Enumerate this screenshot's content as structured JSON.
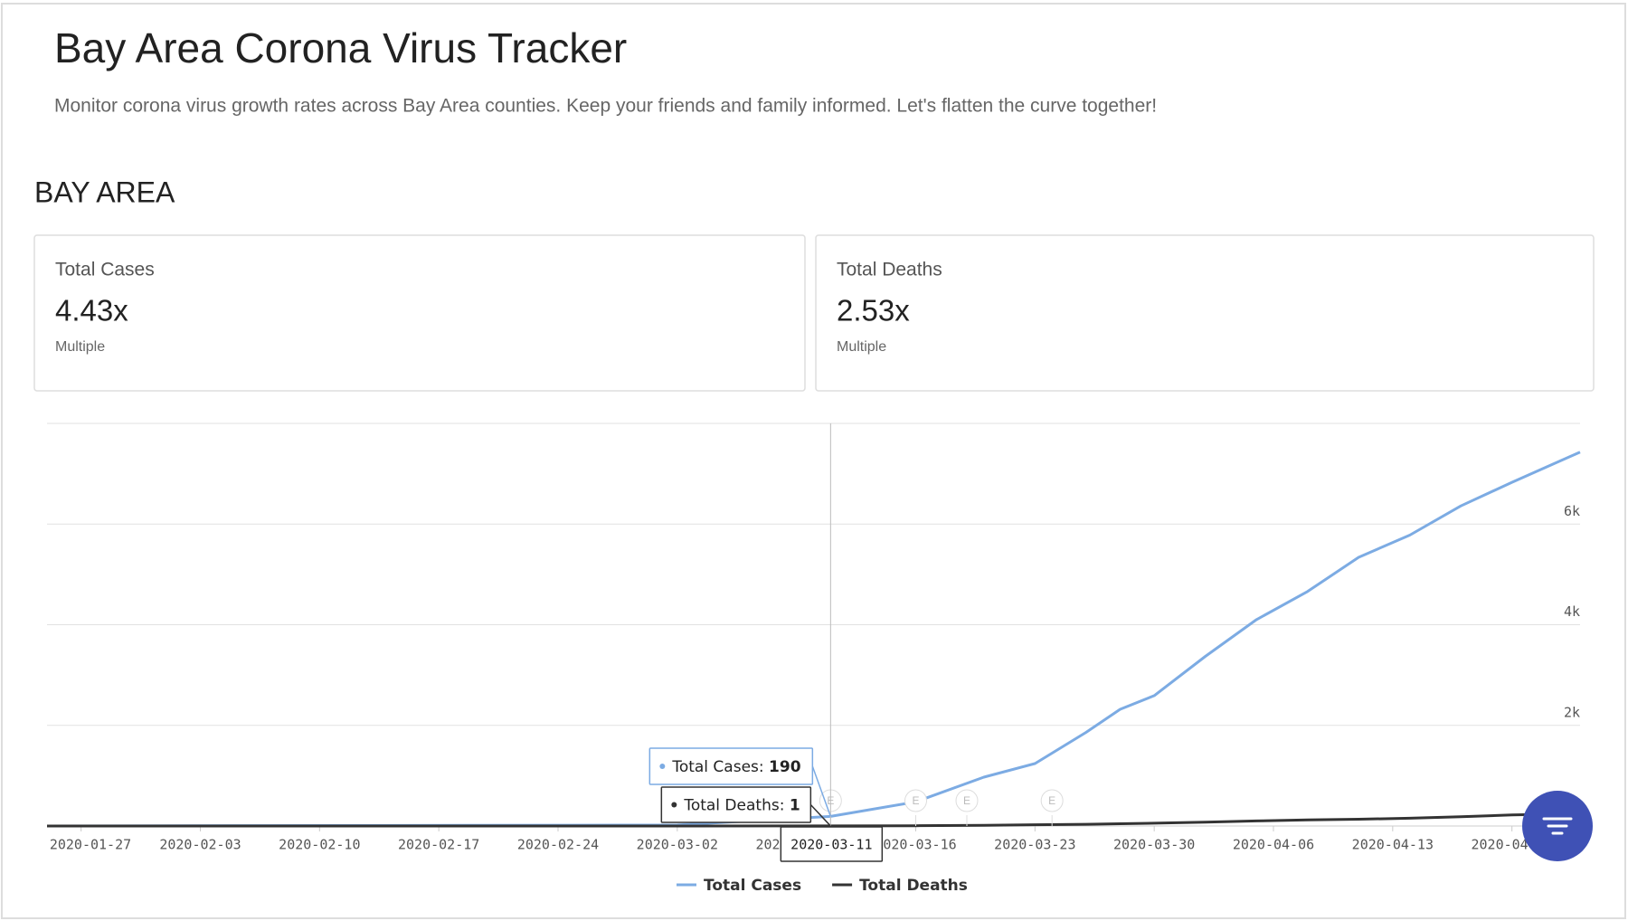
{
  "header": {
    "title": "Bay Area Corona Virus Tracker",
    "subtitle": "Monitor corona virus growth rates across Bay Area counties. Keep your friends and family informed. Let's flatten the curve together!"
  },
  "section": "BAY AREA",
  "cards": [
    {
      "title": "Total Cases",
      "value": "4.43x",
      "caption": "Multiple"
    },
    {
      "title": "Total Deaths",
      "value": "2.53x",
      "caption": "Multiple"
    }
  ],
  "chart_data": {
    "type": "line",
    "x": [
      "2020-01-25",
      "2020-03-02",
      "2020-03-11",
      "2020-03-16",
      "2020-03-20",
      "2020-03-23",
      "2020-03-26",
      "2020-03-28",
      "2020-03-30",
      "2020-04-02",
      "2020-04-05",
      "2020-04-08",
      "2020-04-11",
      "2020-04-14",
      "2020-04-17",
      "2020-04-20",
      "2020-04-24"
    ],
    "series": [
      {
        "name": "Total Cases",
        "color": "#7cabe3",
        "values": [
          0,
          20,
          190,
          480,
          970,
          1240,
          1860,
          2320,
          2590,
          3370,
          4100,
          4660,
          5340,
          5780,
          6360,
          6830,
          7430
        ]
      },
      {
        "name": "Total Deaths",
        "color": "#333333",
        "values": [
          0,
          0,
          1,
          5,
          15,
          25,
          35,
          45,
          55,
          75,
          100,
          120,
          135,
          155,
          185,
          220,
          245
        ]
      }
    ],
    "xlim": [
      "2020-01-25",
      "2020-04-24"
    ],
    "xticks": [
      "2020-01-27",
      "2020-02-03",
      "2020-02-10",
      "2020-02-17",
      "2020-02-24",
      "2020-03-02",
      "2020-03-09",
      "2020-03-16",
      "2020-03-23",
      "2020-03-30",
      "2020-04-06",
      "2020-04-13",
      "2020-04-20"
    ],
    "ylim": [
      0,
      8000
    ],
    "yticks": [
      {
        "value": 2000,
        "label": "2k"
      },
      {
        "value": 4000,
        "label": "4k"
      },
      {
        "value": 6000,
        "label": "6k"
      }
    ],
    "grid": true,
    "events": [
      {
        "date": "2020-03-11",
        "label": "E"
      },
      {
        "date": "2020-03-16",
        "label": "E"
      },
      {
        "date": "2020-03-19",
        "label": "E"
      },
      {
        "date": "2020-03-24",
        "label": "E"
      }
    ],
    "tooltip": {
      "index": 2,
      "items": [
        {
          "label": "Total Cases:"
        },
        {
          "label": "Total Deaths:"
        }
      ]
    }
  }
}
